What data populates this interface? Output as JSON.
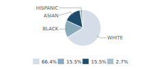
{
  "chart_data": {
    "type": "pie",
    "categories": [
      "WHITE",
      "BLACK",
      "ASIAN",
      "HISPANIC"
    ],
    "values": [
      66.4,
      15.5,
      15.5,
      2.7
    ],
    "value_labels": [
      "66.4%",
      "15.5%",
      "15.5%",
      "2.7%"
    ],
    "colors": [
      "#d4dde8",
      "#8aabbc",
      "#1e4d6b",
      "#a8bfcc"
    ],
    "legend": "bottom"
  }
}
